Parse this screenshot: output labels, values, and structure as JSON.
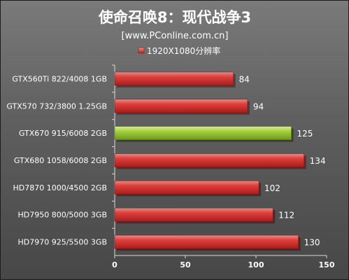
{
  "chart_data": {
    "type": "bar",
    "orientation": "horizontal",
    "title": "使命召唤8：现代战争3",
    "subtitle": "[www.PConline.com.cn]",
    "series": [
      {
        "name": "1920X1080分辨率",
        "color": "#d9403e",
        "highlight_color": "#9ccc3c",
        "highlight_category": "GTX670 915/6008 2GB",
        "values": [
          84,
          94,
          125,
          134,
          102,
          112,
          130
        ]
      }
    ],
    "categories": [
      "GTX560Ti 822/4008 1GB",
      "GTX570 732/3800 1.25GB",
      "GTX670 915/6008 2GB",
      "GTX680 1058/6008 2GB",
      "HD7870 1000/4500 2GB",
      "HD7950 800/5000 3GB",
      "HD7970 925/5500 3GB"
    ],
    "xlim": [
      0,
      150
    ],
    "xticks": [
      0,
      50,
      100,
      150
    ],
    "grid": false,
    "legend_position": "top-center",
    "xlabel": "",
    "ylabel": ""
  }
}
